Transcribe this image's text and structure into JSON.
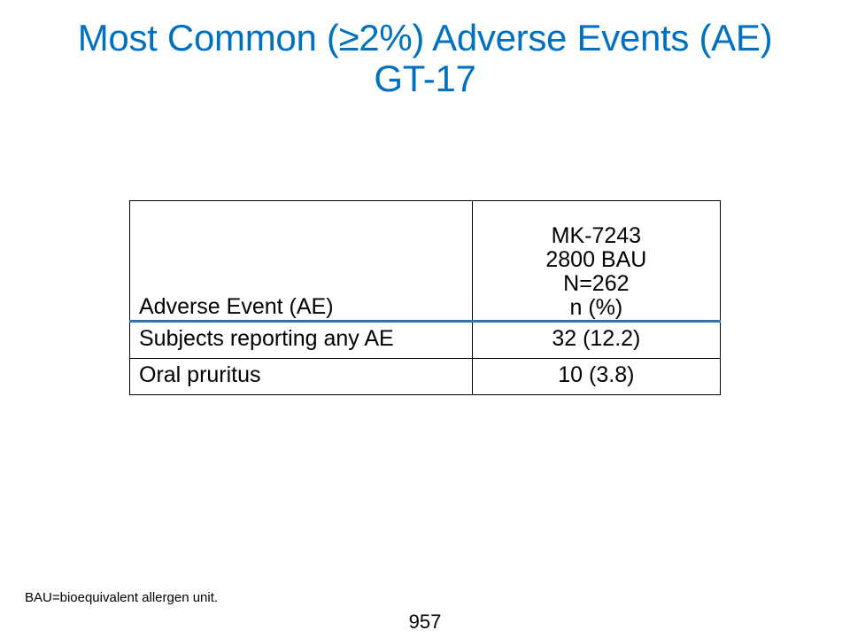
{
  "slide": {
    "title_line1": "Most Common (≥2%) Adverse Events (AE)",
    "title_line2": "GT-17",
    "title_color": "#0070c0"
  },
  "table": {
    "header": {
      "col1": "Adverse Event (AE)",
      "col2_lines": [
        "MK-7243",
        "2800 BAU",
        "N=262",
        "n (%)"
      ]
    },
    "rows": [
      {
        "event": "Subjects reporting any AE",
        "value": "32 (12.2)"
      },
      {
        "event": "Oral pruritus",
        "value": "10 (3.8)"
      }
    ],
    "header_rule_color": "#2e74b5"
  },
  "footnote": "BAU=bioequivalent allergen unit.",
  "page_number": "957"
}
